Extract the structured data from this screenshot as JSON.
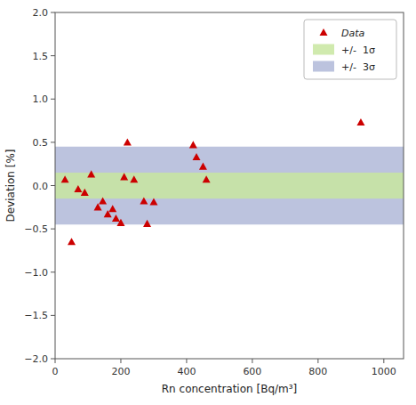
{
  "chart_data": {
    "type": "scatter",
    "xlabel": "Rn concentration [Bq/m³]",
    "ylabel": "Deviation [%]",
    "series": [
      {
        "name": "Data",
        "type": "scatter",
        "marker": "triangle",
        "color": "#cc0000",
        "x": [
          30,
          50,
          70,
          90,
          110,
          130,
          145,
          160,
          175,
          185,
          200,
          210,
          220,
          240,
          270,
          280,
          300,
          420,
          430,
          450,
          460,
          930
        ],
        "values": [
          0.07,
          -0.65,
          -0.04,
          -0.08,
          0.13,
          -0.25,
          -0.18,
          -0.33,
          -0.27,
          -0.38,
          -0.43,
          0.1,
          0.5,
          0.07,
          -0.18,
          -0.44,
          -0.19,
          0.47,
          0.33,
          0.22,
          0.07,
          0.73
        ]
      }
    ],
    "bands": [
      {
        "name": "+/-  1σ",
        "half_width": 0.15,
        "color": "#c8e6a0"
      },
      {
        "name": "+/-  3σ",
        "half_width": 0.45,
        "color": "#b0b8d8"
      }
    ],
    "xlim": [
      0,
      1060
    ],
    "ylim": [
      -2.0,
      2.0
    ],
    "xticks": [
      0,
      200,
      400,
      600,
      800,
      1000
    ],
    "yticks": [
      {
        "value": -2.0,
        "label": "−2.0"
      },
      {
        "value": -1.5,
        "label": "−1.5"
      },
      {
        "value": -1.0,
        "label": "−1.0"
      },
      {
        "value": -0.5,
        "label": "−0.5"
      },
      {
        "value": 0.0,
        "label": "0.0"
      },
      {
        "value": 0.5,
        "label": "0.5"
      },
      {
        "value": 1.0,
        "label": "1.0"
      },
      {
        "value": 1.5,
        "label": "1.5"
      },
      {
        "value": 2.0,
        "label": "2.0"
      }
    ],
    "grid": false,
    "legend": "upper right"
  }
}
